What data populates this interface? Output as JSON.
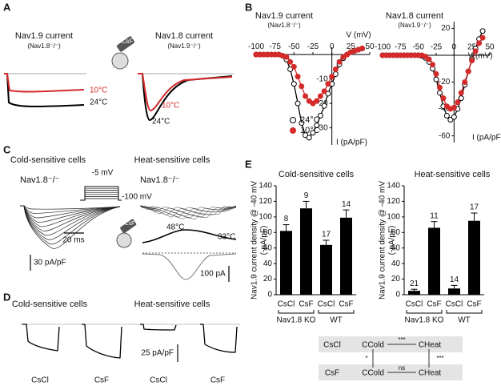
{
  "panel_labels": [
    "A",
    "B",
    "C",
    "D",
    "E"
  ],
  "panel_a": {
    "left_title": "Nav1.9 current",
    "left_subtitle": "(Nav1.8⁻/⁻)",
    "right_title": "Nav1.8 current",
    "right_subtitle": "(Nav1.9⁻/⁻)",
    "icon_label": "CsF",
    "left_cold": "10°C",
    "left_warm": "24°C",
    "right_cold": "10°C",
    "right_warm": "24°C"
  },
  "panel_c": {
    "left_title": "Cold-sensitive cells",
    "right_title": "Heat-sensitive cells",
    "left_genotype": "Nav1.8⁻/⁻",
    "right_genotype": "Nav1.8⁻/⁻",
    "step_high": "-5 mV",
    "step_low": "-100 mV",
    "time_scale": "20 ms",
    "current_scale": "30 pA/pF",
    "icon_label": "CsF",
    "temp_start": "48°C",
    "temp_end": "33°C",
    "current_scale_right": "100 pA"
  },
  "panel_d": {
    "left_title": "Cold-sensitive cells",
    "right_title": "Heat-sensitive cells",
    "scale": "25 pA/pF",
    "trace_labels": [
      "CsCl",
      "CsF",
      "CsCl",
      "CsF"
    ]
  },
  "panel_e_diagram": {
    "rows": [
      [
        "CsCl",
        "CCold",
        "***",
        "CHeat"
      ],
      [
        "CsF",
        "CCold",
        "ns",
        "CHeat"
      ]
    ],
    "left_sig": "*",
    "right_sig": "***"
  },
  "chart_data": [
    {
      "type": "line",
      "title": "Nav1.9 current",
      "subtitle": "(Nav1.8⁻/⁻)",
      "xlabel": "V (mV)",
      "ylabel": "I (pA/pF)",
      "x": [
        -100,
        -95,
        -90,
        -85,
        -80,
        -75,
        -70,
        -65,
        -60,
        -55,
        -50,
        -45,
        -40,
        -35,
        -30,
        -25,
        -20,
        -15,
        -10,
        -5,
        0,
        5,
        10,
        15,
        20,
        25,
        30,
        35,
        40
      ],
      "series": [
        {
          "name": "24°C",
          "color": "#000000",
          "filled": false,
          "values": [
            0,
            0,
            0,
            0,
            0,
            0,
            0,
            -0.5,
            -2,
            -6,
            -12,
            -20,
            -28,
            -33,
            -34,
            -32,
            -29,
            -25,
            -21,
            -16,
            -12,
            -8,
            -4,
            -1.5,
            0,
            1,
            1.5,
            2,
            2.5
          ]
        },
        {
          "name": "10°C",
          "color": "#d42a2a",
          "filled": true,
          "values": [
            0,
            0,
            0,
            0,
            0,
            0,
            0,
            -0.5,
            -1,
            -3,
            -5,
            -9,
            -13,
            -17,
            -19,
            -20,
            -19,
            -17,
            -15,
            -12,
            -9,
            -6,
            -3,
            -1,
            0,
            1,
            1.5,
            2,
            2.5
          ]
        }
      ],
      "xlim": [
        -100,
        50
      ],
      "ylim": [
        -37,
        3
      ],
      "xticks": [
        -100,
        -75,
        -50,
        -25,
        0,
        25,
        50
      ],
      "yticks": [
        -30,
        -20,
        -10
      ],
      "legend": "lower left"
    },
    {
      "type": "line",
      "title": "Nav1.8 current",
      "subtitle": "(Nav1.9⁻/⁻)",
      "xlabel": "V (mV)",
      "ylabel": "I (pA/pF)",
      "x": [
        -100,
        -95,
        -90,
        -85,
        -80,
        -75,
        -70,
        -65,
        -60,
        -55,
        -50,
        -45,
        -40,
        -35,
        -30,
        -25,
        -20,
        -15,
        -10,
        -5,
        0,
        5,
        10,
        15,
        20,
        25,
        30,
        35,
        40
      ],
      "series": [
        {
          "color": "#000000",
          "filled": false,
          "values": [
            0,
            0,
            0,
            0,
            0,
            0,
            0,
            0,
            0,
            0,
            0,
            -0.5,
            -2,
            -5,
            -10,
            -18,
            -28,
            -38,
            -45,
            -48,
            -46,
            -40,
            -32,
            -22,
            -12,
            -3,
            5,
            12,
            18
          ]
        },
        {
          "color": "#d42a2a",
          "filled": true,
          "values": [
            0,
            0,
            0,
            0,
            0,
            0,
            0,
            0,
            0,
            0,
            0,
            0,
            -1,
            -3,
            -7,
            -14,
            -24,
            -32,
            -38,
            -40,
            -39,
            -35,
            -28,
            -20,
            -12,
            -4,
            3,
            9,
            13
          ]
        }
      ],
      "xlim": [
        -100,
        50
      ],
      "ylim": [
        -65,
        25
      ],
      "xticks": [
        -100,
        -75,
        -50,
        -25,
        0,
        25,
        50
      ],
      "yticks": [
        -60,
        -40,
        -20,
        20
      ]
    },
    {
      "type": "bar",
      "title": "Cold-sensitive cells",
      "ylabel": [
        "Nav1.9 current density @ -40 mV",
        "(-pA/pF)"
      ],
      "categories": [
        "CsCl",
        "CsF",
        "CsCl",
        "CsF"
      ],
      "values": [
        82,
        111,
        64,
        99
      ],
      "errors": [
        8,
        9,
        6,
        10
      ],
      "n": [
        8,
        9,
        17,
        14
      ],
      "groups": [
        "Nav1.8 KO",
        "WT"
      ],
      "color": "#000000",
      "ylim": [
        0,
        140
      ],
      "yticks": [
        0,
        20,
        40,
        60,
        80,
        100,
        120,
        140
      ]
    },
    {
      "type": "bar",
      "title": "Heat-sensitive cells",
      "ylabel": [
        "Nav1.9 current density @ -40 mV",
        "(-pA/pF)"
      ],
      "categories": [
        "CsCl",
        "CsF",
        "CsCl",
        "CsF"
      ],
      "values": [
        5,
        86,
        8,
        95
      ],
      "errors": [
        2,
        8,
        4,
        10
      ],
      "n": [
        21,
        11,
        14,
        17
      ],
      "groups": [
        "Nav1.8 KO",
        "WT"
      ],
      "color": "#000000",
      "ylim": [
        0,
        140
      ],
      "yticks": [
        0,
        20,
        40,
        60,
        80,
        100,
        120,
        140
      ]
    }
  ]
}
